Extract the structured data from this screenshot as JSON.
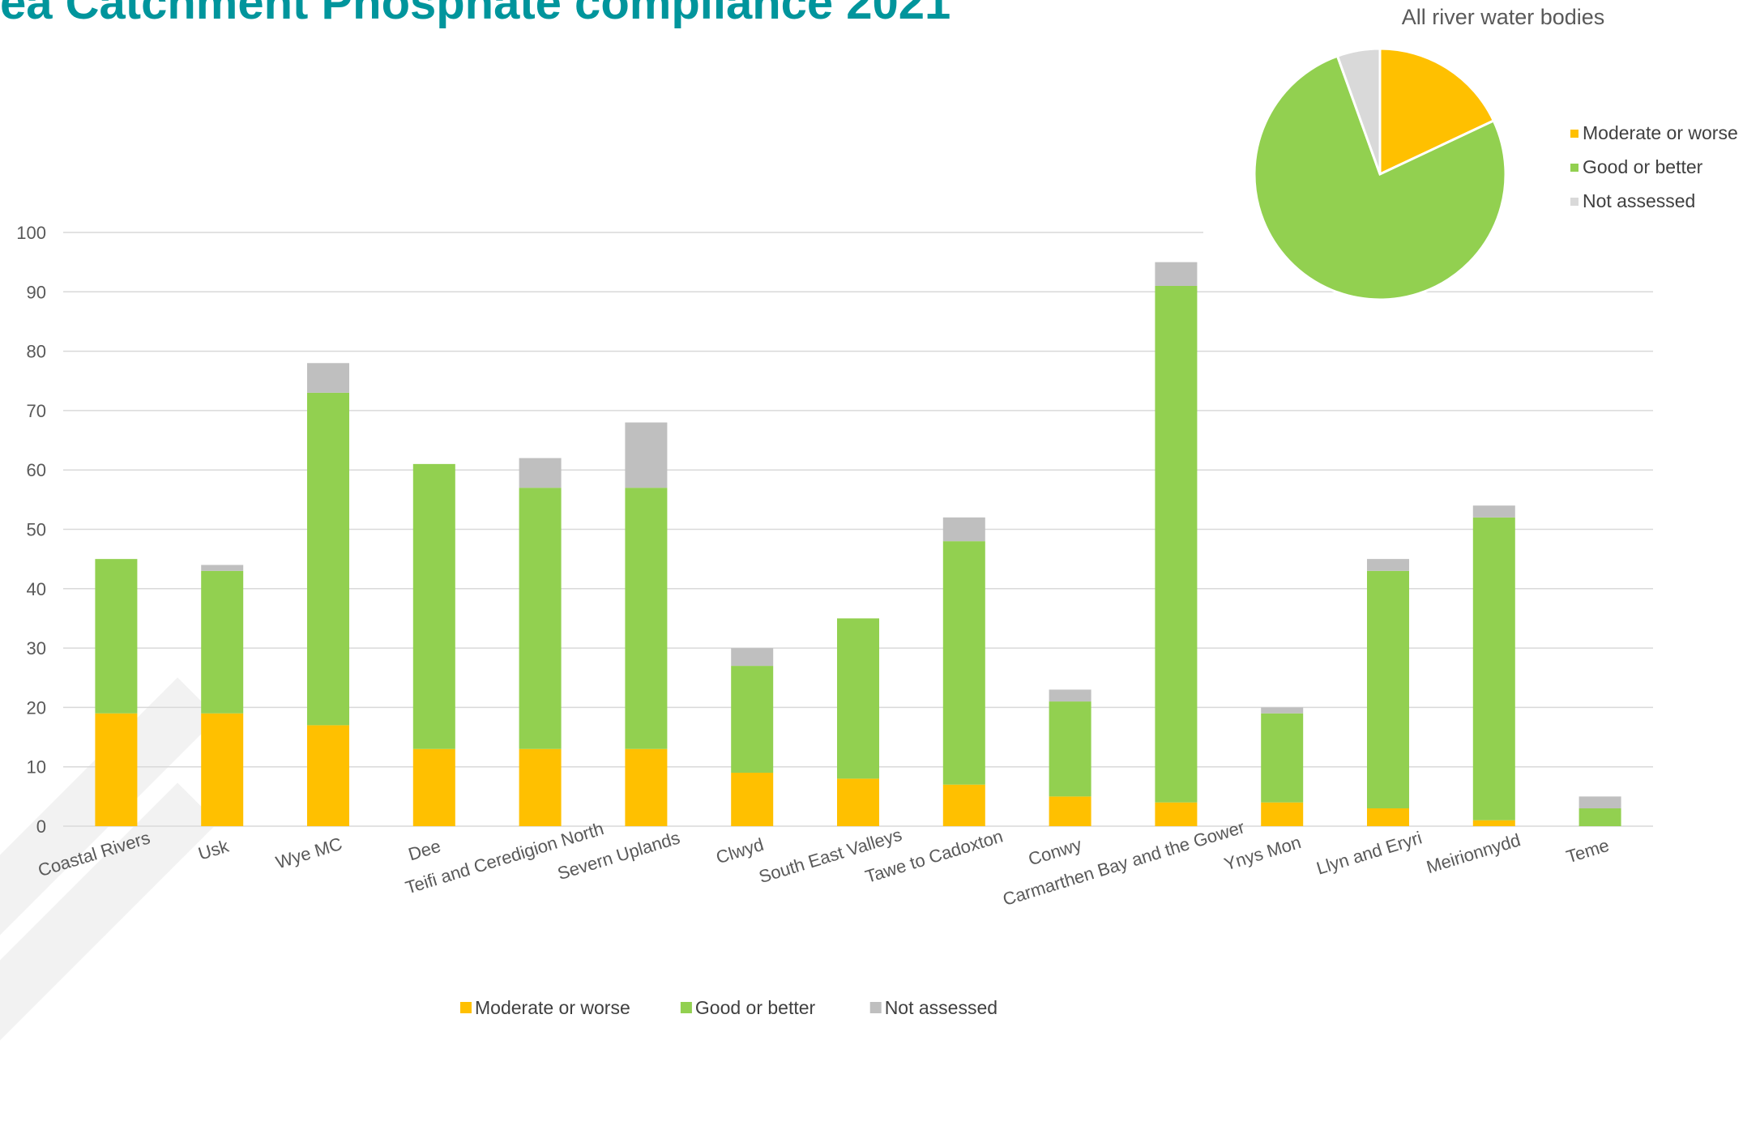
{
  "page": {
    "title": "ea Catchment Phosphate compliance 2021"
  },
  "colors": {
    "moderate": "#ffc000",
    "good": "#92d050",
    "not_assessed": "#bfbfbf",
    "pie_not_assessed": "#d9d9d9",
    "title": "#00959c",
    "grid": "#d9d9d9",
    "axis_text": "#595959"
  },
  "chart_data": [
    {
      "type": "bar",
      "stacked": true,
      "categories": [
        "Coastal Rivers",
        "Usk",
        "Wye MC",
        "Dee",
        "Teifi and Ceredigion North",
        "Severn Uplands",
        "Clwyd",
        "South East Valleys",
        "Tawe to Cadoxton",
        "Conwy",
        "Carmarthen Bay and the Gower",
        "Ynys Mon",
        "Llyn and Eryri",
        "Meirionnydd",
        "Teme"
      ],
      "series": [
        {
          "name": "Moderate or worse",
          "values": [
            19,
            19,
            17,
            13,
            13,
            13,
            9,
            8,
            7,
            5,
            4,
            4,
            3,
            1,
            0
          ]
        },
        {
          "name": "Good or better",
          "values": [
            26,
            24,
            56,
            48,
            44,
            44,
            18,
            27,
            41,
            16,
            87,
            15,
            40,
            51,
            3
          ]
        },
        {
          "name": "Not assessed",
          "values": [
            0,
            1,
            5,
            0,
            5,
            11,
            3,
            0,
            4,
            2,
            4,
            1,
            2,
            2,
            2
          ]
        }
      ],
      "ylim": [
        0,
        100
      ],
      "yticks": [
        0,
        10,
        20,
        30,
        40,
        50,
        60,
        70,
        80,
        90,
        100
      ],
      "grid": true,
      "legend": "bottom"
    },
    {
      "type": "pie",
      "title": "All river water bodies",
      "labels": [
        "Moderate or worse",
        "Good or better",
        "Not assessed"
      ],
      "values": [
        18,
        76.5,
        5.5
      ],
      "legend": "right"
    }
  ]
}
